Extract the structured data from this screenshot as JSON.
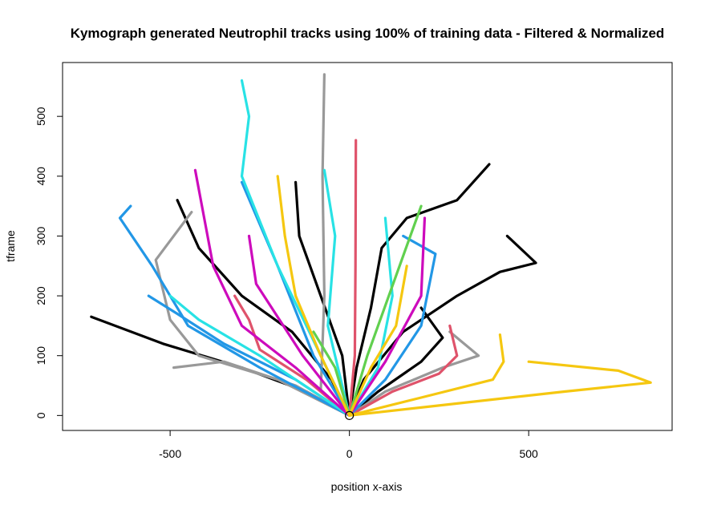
{
  "chart_data": {
    "type": "scatter",
    "title": "Kymograph generated Neutrophil tracks using 100% of training data - Filtered & Normalized",
    "xlabel": "position x-axis",
    "ylabel": "tframe",
    "xlim": [
      -800,
      900
    ],
    "ylim": [
      -25,
      590
    ],
    "xticks": [
      -500,
      0,
      500
    ],
    "yticks": [
      0,
      100,
      200,
      300,
      400,
      500
    ],
    "grid": false,
    "legend": "none",
    "origin_marker": {
      "x": 0,
      "y": 0
    },
    "series": [
      {
        "color": "#000000",
        "points": [
          [
            0,
            0
          ],
          [
            -120,
            40
          ],
          [
            -300,
            80
          ],
          [
            -520,
            120
          ],
          [
            -720,
            165
          ]
        ]
      },
      {
        "color": "#000000",
        "points": [
          [
            0,
            0
          ],
          [
            20,
            80
          ],
          [
            60,
            180
          ],
          [
            90,
            280
          ],
          [
            160,
            330
          ],
          [
            300,
            360
          ],
          [
            390,
            420
          ]
        ]
      },
      {
        "color": "#000000",
        "points": [
          [
            0,
            0
          ],
          [
            40,
            60
          ],
          [
            150,
            140
          ],
          [
            300,
            200
          ],
          [
            420,
            240
          ],
          [
            520,
            255
          ],
          [
            440,
            300
          ]
        ]
      },
      {
        "color": "#000000",
        "points": [
          [
            0,
            0
          ],
          [
            -50,
            60
          ],
          [
            -160,
            140
          ],
          [
            -300,
            200
          ],
          [
            -420,
            280
          ],
          [
            -480,
            360
          ]
        ]
      },
      {
        "color": "#000000",
        "points": [
          [
            0,
            0
          ],
          [
            -20,
            100
          ],
          [
            -80,
            200
          ],
          [
            -140,
            300
          ],
          [
            -150,
            390
          ]
        ]
      },
      {
        "color": "#000000",
        "points": [
          [
            0,
            0
          ],
          [
            80,
            40
          ],
          [
            200,
            90
          ],
          [
            260,
            130
          ],
          [
            200,
            180
          ]
        ]
      },
      {
        "color": "#999999",
        "points": [
          [
            0,
            0
          ],
          [
            -200,
            60
          ],
          [
            -420,
            100
          ],
          [
            -500,
            160
          ],
          [
            -540,
            260
          ],
          [
            -440,
            340
          ]
        ]
      },
      {
        "color": "#999999",
        "points": [
          [
            0,
            0
          ],
          [
            -80,
            40
          ],
          [
            -70,
            200
          ],
          [
            -75,
            400
          ],
          [
            -70,
            570
          ]
        ]
      },
      {
        "color": "#999999",
        "points": [
          [
            0,
            0
          ],
          [
            100,
            40
          ],
          [
            260,
            80
          ],
          [
            360,
            100
          ],
          [
            280,
            140
          ]
        ]
      },
      {
        "color": "#999999",
        "points": [
          [
            0,
            0
          ],
          [
            -150,
            50
          ],
          [
            -350,
            90
          ],
          [
            -490,
            80
          ]
        ]
      },
      {
        "color": "#DF536B",
        "points": [
          [
            0,
            0
          ],
          [
            15,
            100
          ],
          [
            17,
            250
          ],
          [
            18,
            460
          ]
        ]
      },
      {
        "color": "#DF536B",
        "points": [
          [
            0,
            0
          ],
          [
            120,
            40
          ],
          [
            250,
            70
          ],
          [
            300,
            100
          ],
          [
            280,
            150
          ]
        ]
      },
      {
        "color": "#DF536B",
        "points": [
          [
            0,
            0
          ],
          [
            -120,
            60
          ],
          [
            -250,
            110
          ],
          [
            -280,
            160
          ],
          [
            -320,
            200
          ]
        ]
      },
      {
        "color": "#2297E6",
        "points": [
          [
            0,
            0
          ],
          [
            -150,
            60
          ],
          [
            -350,
            120
          ],
          [
            -480,
            170
          ],
          [
            -560,
            200
          ]
        ]
      },
      {
        "color": "#2297E6",
        "points": [
          [
            0,
            0
          ],
          [
            -250,
            80
          ],
          [
            -450,
            150
          ],
          [
            -550,
            250
          ],
          [
            -640,
            330
          ],
          [
            -610,
            350
          ]
        ]
      },
      {
        "color": "#2297E6",
        "points": [
          [
            0,
            0
          ],
          [
            100,
            60
          ],
          [
            200,
            150
          ],
          [
            240,
            270
          ],
          [
            150,
            300
          ]
        ]
      },
      {
        "color": "#2297E6",
        "points": [
          [
            0,
            0
          ],
          [
            -100,
            100
          ],
          [
            -200,
            250
          ],
          [
            -300,
            390
          ]
        ]
      },
      {
        "color": "#28E2E5",
        "points": [
          [
            0,
            0
          ],
          [
            -80,
            100
          ],
          [
            -200,
            250
          ],
          [
            -300,
            400
          ],
          [
            -280,
            500
          ],
          [
            -300,
            560
          ]
        ]
      },
      {
        "color": "#28E2E5",
        "points": [
          [
            0,
            0
          ],
          [
            -60,
            150
          ],
          [
            -40,
            300
          ],
          [
            -70,
            410
          ]
        ]
      },
      {
        "color": "#28E2E5",
        "points": [
          [
            0,
            0
          ],
          [
            80,
            80
          ],
          [
            120,
            200
          ],
          [
            100,
            330
          ]
        ]
      },
      {
        "color": "#28E2E5",
        "points": [
          [
            0,
            0
          ],
          [
            -250,
            100
          ],
          [
            -420,
            160
          ],
          [
            -500,
            200
          ]
        ]
      },
      {
        "color": "#CD0BBC",
        "points": [
          [
            0,
            0
          ],
          [
            -150,
            80
          ],
          [
            -300,
            150
          ],
          [
            -380,
            250
          ],
          [
            -430,
            410
          ]
        ]
      },
      {
        "color": "#CD0BBC",
        "points": [
          [
            0,
            0
          ],
          [
            100,
            90
          ],
          [
            200,
            200
          ],
          [
            210,
            330
          ]
        ]
      },
      {
        "color": "#CD0BBC",
        "points": [
          [
            0,
            0
          ],
          [
            -130,
            100
          ],
          [
            -260,
            220
          ],
          [
            -280,
            300
          ]
        ]
      },
      {
        "color": "#61D04F",
        "points": [
          [
            0,
            0
          ],
          [
            50,
            100
          ],
          [
            110,
            200
          ],
          [
            170,
            300
          ],
          [
            200,
            350
          ]
        ]
      },
      {
        "color": "#61D04F",
        "points": [
          [
            0,
            0
          ],
          [
            -40,
            80
          ],
          [
            -100,
            140
          ]
        ]
      },
      {
        "color": "#F5C710",
        "points": [
          [
            0,
            0
          ],
          [
            300,
            20
          ],
          [
            600,
            40
          ],
          [
            840,
            55
          ],
          [
            750,
            75
          ],
          [
            500,
            90
          ]
        ]
      },
      {
        "color": "#F5C710",
        "points": [
          [
            0,
            0
          ],
          [
            200,
            30
          ],
          [
            400,
            60
          ],
          [
            430,
            90
          ],
          [
            420,
            135
          ]
        ]
      },
      {
        "color": "#F5C710",
        "points": [
          [
            0,
            0
          ],
          [
            -80,
            100
          ],
          [
            -150,
            200
          ],
          [
            -180,
            300
          ],
          [
            -200,
            400
          ]
        ]
      },
      {
        "color": "#F5C710",
        "points": [
          [
            0,
            0
          ],
          [
            60,
            80
          ],
          [
            130,
            150
          ],
          [
            160,
            250
          ]
        ]
      }
    ]
  }
}
